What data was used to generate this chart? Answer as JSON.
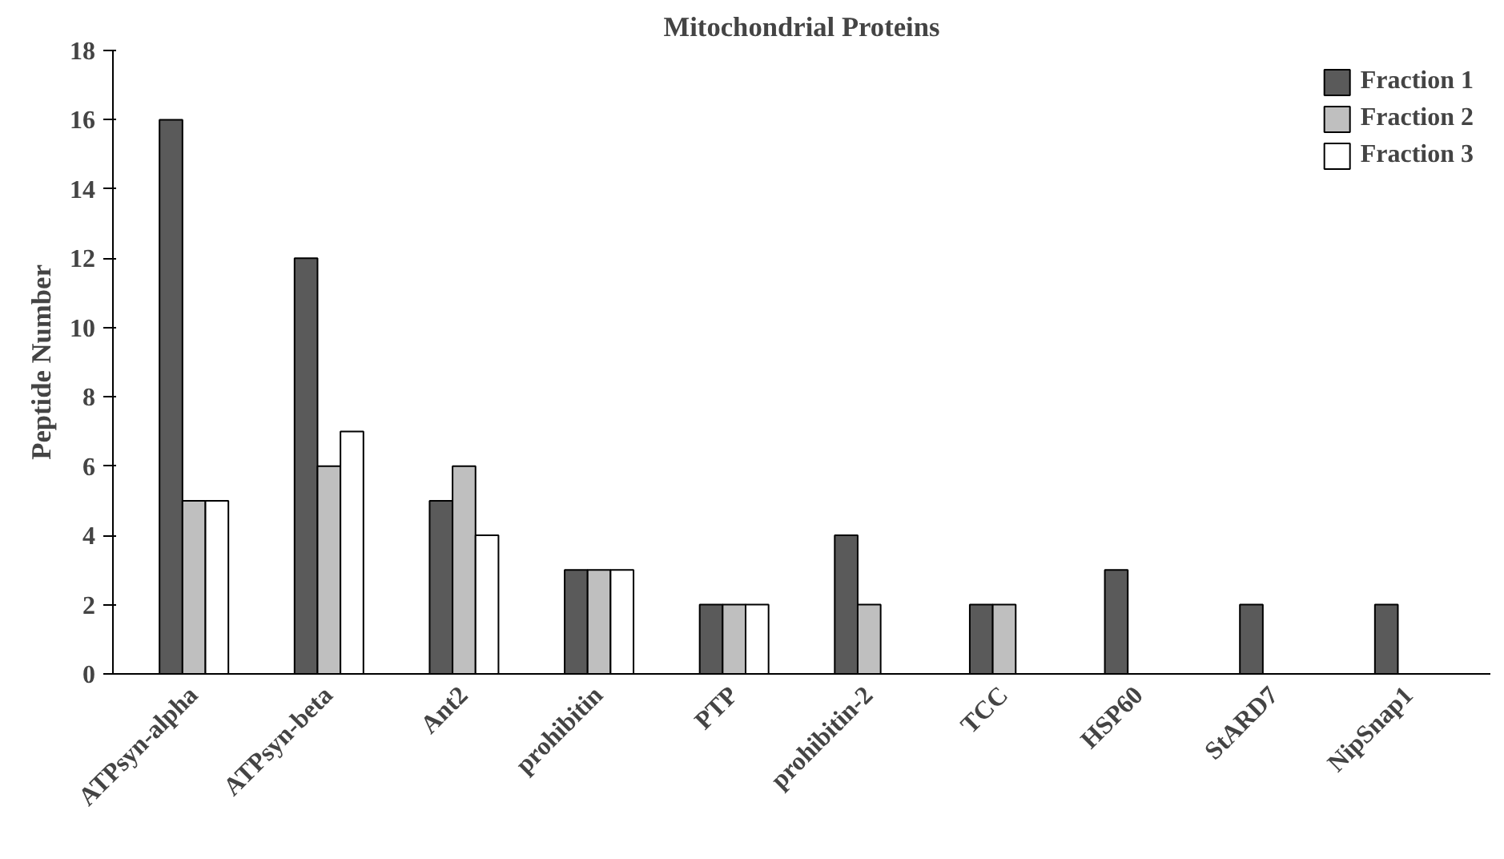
{
  "chart_data": {
    "type": "bar",
    "title": "Mitochondrial Proteins",
    "ylabel": "Peptide Number",
    "categories": [
      "ATPsyn-alpha",
      "ATPsyn-beta",
      "Ant2",
      "prohibitin",
      "PTP",
      "prohibitin-2",
      "TCC",
      "HSP60",
      "StARD7",
      "NipSnap1"
    ],
    "series": [
      {
        "name": "Fraction 1",
        "color": "#5a5a5a",
        "values": [
          16,
          12,
          5,
          3,
          2,
          4,
          2,
          3,
          2,
          2
        ]
      },
      {
        "name": "Fraction 2",
        "color": "#bfbfbf",
        "values": [
          5,
          6,
          6,
          3,
          2,
          2,
          2,
          null,
          null,
          null
        ]
      },
      {
        "name": "Fraction 3",
        "color": "#ffffff",
        "values": [
          5,
          7,
          4,
          3,
          2,
          null,
          null,
          null,
          null,
          null
        ]
      }
    ],
    "ylim": [
      0,
      18
    ],
    "yticks": [
      0,
      2,
      4,
      6,
      8,
      10,
      12,
      14,
      16,
      18
    ],
    "grid": false,
    "legend": "top right"
  }
}
